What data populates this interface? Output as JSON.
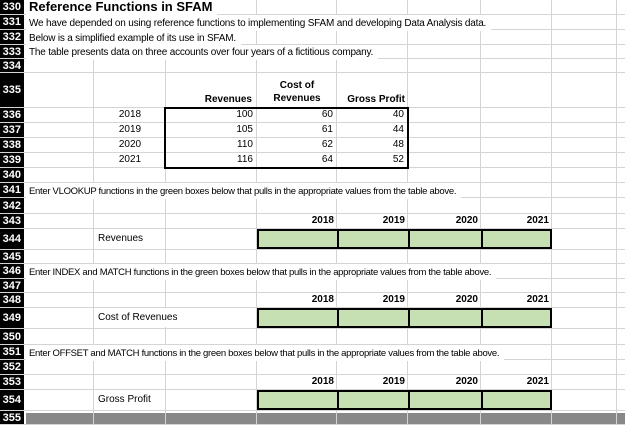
{
  "rows": {
    "numbers": [
      "330",
      "331",
      "332",
      "333",
      "334",
      "335",
      "336",
      "337",
      "338",
      "339",
      "340",
      "341",
      "342",
      "343",
      "344",
      "345",
      "346",
      "347",
      "348",
      "349",
      "350",
      "351",
      "352",
      "353",
      "354",
      "355"
    ]
  },
  "cells": {
    "title": "Reference Functions in SFAM",
    "row331": "We have depended on using reference functions to implementing SFAM and developing Data Analysis data.",
    "row332": "Below is a simplified example of its use in SFAM.",
    "row333": "The table presents data on three accounts over four years of a fictitious company."
  },
  "data_table": {
    "headers": {
      "revenues": "Revenues",
      "cost_line1": "Cost of",
      "cost_line2": "Revenues",
      "gross_profit": "Gross Profit"
    },
    "rows": [
      {
        "year": "2018",
        "revenues": "100",
        "cost": "60",
        "gross": "40"
      },
      {
        "year": "2019",
        "revenues": "105",
        "cost": "61",
        "gross": "44"
      },
      {
        "year": "2020",
        "revenues": "110",
        "cost": "62",
        "gross": "48"
      },
      {
        "year": "2021",
        "revenues": "116",
        "cost": "64",
        "gross": "52"
      }
    ]
  },
  "sections": [
    {
      "key": "revenues",
      "instruction": "Enter VLOOKUP functions in the green boxes below that pulls in the appropriate values from the table above.",
      "years": [
        "2018",
        "2019",
        "2020",
        "2021"
      ],
      "label": "Revenues"
    },
    {
      "key": "cost-of-revenues",
      "instruction": "Enter INDEX and MATCH functions in the green boxes below that pulls in the appropriate values from the table above.",
      "years": [
        "2018",
        "2019",
        "2020",
        "2021"
      ],
      "label": "Cost of Revenues"
    },
    {
      "key": "gross-profit",
      "instruction": "Enter OFFSET and MATCH functions in the green boxes below that pulls in the appropriate values from the table above.",
      "years": [
        "2018",
        "2019",
        "2020",
        "2021"
      ],
      "label": "Gross Profit"
    }
  ],
  "colors": {
    "green_fill": "#c6e0b4",
    "grid_line": "#d4d4d4",
    "row_header_bg": "#000000",
    "row_header_text": "#ffffff",
    "table_border": "#000000"
  }
}
